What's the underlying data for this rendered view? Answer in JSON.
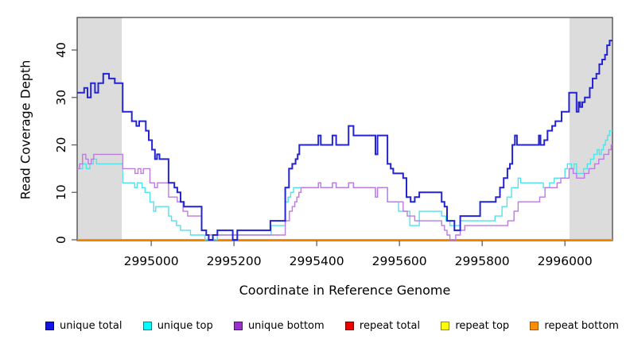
{
  "chart_data": {
    "type": "line",
    "subtype": "step-coverage-plot",
    "title": "",
    "xlabel": "Coordinate in Reference Genome",
    "ylabel": "Read Coverage Depth",
    "xlim": [
      2994821,
      2996115
    ],
    "ylim": [
      0,
      46.8
    ],
    "grid": "off",
    "x_ticks": {
      "values": [
        2995000,
        2995200,
        2995400,
        2995600,
        2995800,
        2996000
      ],
      "labels": [
        "2995000",
        "2995200",
        "2995400",
        "2995600",
        "2995800",
        "2996000"
      ]
    },
    "y_ticks": {
      "values": [
        0,
        10,
        20,
        30,
        40
      ],
      "labels": [
        "0",
        "10",
        "20",
        "30",
        "40"
      ]
    },
    "shaded_regions": [
      {
        "x0": 2994821,
        "x1": 2994929,
        "color": "#DCDCDC"
      },
      {
        "x0": 2996011,
        "x1": 2996115,
        "color": "#DCDCDC"
      }
    ],
    "legend_position": "bottom",
    "series": [
      {
        "name": "repeat total",
        "line_color": "#CC0000",
        "legend_color": "#EE0000",
        "border_color": "#7A0000",
        "line_width": 1.4,
        "points": [
          [
            2994821,
            0
          ]
        ]
      },
      {
        "name": "repeat top",
        "line_color": "#FFFF00",
        "legend_color": "#FFFF00",
        "border_color": "#8F8F00",
        "line_width": 1.4,
        "points": [
          [
            2994821,
            0
          ]
        ]
      },
      {
        "name": "repeat bottom",
        "line_color": "#FF8C00",
        "legend_color": "#FF8C00",
        "border_color": "#9C5400",
        "line_width": 2,
        "points": [
          [
            2994821,
            0
          ]
        ]
      },
      {
        "name": "unique top",
        "line_color": "#52E2EA",
        "legend_color": "#00FFFF",
        "border_color": "#007F86",
        "line_width": 1.4,
        "points": [
          [
            2994821,
            15
          ],
          [
            2994834,
            16
          ],
          [
            2994843,
            15
          ],
          [
            2994852,
            16
          ],
          [
            2994860,
            17
          ],
          [
            2994868,
            16
          ],
          [
            2994931,
            12
          ],
          [
            2994960,
            11
          ],
          [
            2994966,
            12
          ],
          [
            2994978,
            11
          ],
          [
            2994985,
            10
          ],
          [
            2994997,
            8
          ],
          [
            2995006,
            6
          ],
          [
            2995011,
            7
          ],
          [
            2995042,
            5
          ],
          [
            2995049,
            4
          ],
          [
            2995061,
            3
          ],
          [
            2995071,
            2
          ],
          [
            2995095,
            1
          ],
          [
            2995130,
            0
          ],
          [
            2995160,
            1
          ],
          [
            2995290,
            3
          ],
          [
            2995324,
            8
          ],
          [
            2995331,
            9
          ],
          [
            2995337,
            10
          ],
          [
            2995344,
            11
          ],
          [
            2995404,
            12
          ],
          [
            2995410,
            11
          ],
          [
            2995438,
            12
          ],
          [
            2995447,
            11
          ],
          [
            2995477,
            12
          ],
          [
            2995489,
            11
          ],
          [
            2995542,
            9
          ],
          [
            2995547,
            11
          ],
          [
            2995571,
            8
          ],
          [
            2995598,
            6
          ],
          [
            2995625,
            3
          ],
          [
            2995648,
            6
          ],
          [
            2995702,
            5
          ],
          [
            2995712,
            4
          ],
          [
            2995722,
            3
          ],
          [
            2995747,
            4
          ],
          [
            2995831,
            5
          ],
          [
            2995848,
            7
          ],
          [
            2995860,
            9
          ],
          [
            2995871,
            11
          ],
          [
            2995887,
            13
          ],
          [
            2995893,
            12
          ],
          [
            2995948,
            11
          ],
          [
            2995963,
            12
          ],
          [
            2995974,
            13
          ],
          [
            2996000,
            15
          ],
          [
            2996006,
            16
          ],
          [
            2996016,
            15
          ],
          [
            2996022,
            16
          ],
          [
            2996028,
            14
          ],
          [
            2996045,
            15
          ],
          [
            2996054,
            16
          ],
          [
            2996062,
            17
          ],
          [
            2996070,
            18
          ],
          [
            2996078,
            19
          ],
          [
            2996083,
            18
          ],
          [
            2996088,
            19
          ],
          [
            2996093,
            20
          ],
          [
            2996098,
            21
          ],
          [
            2996103,
            22
          ],
          [
            2996108,
            23
          ]
        ]
      },
      {
        "name": "unique bottom",
        "line_color": "#BC7BDE",
        "legend_color": "#9932CC",
        "border_color": "#4B1566",
        "line_width": 1.4,
        "points": [
          [
            2994821,
            15
          ],
          [
            2994827,
            16
          ],
          [
            2994834,
            18
          ],
          [
            2994842,
            17
          ],
          [
            2994848,
            16
          ],
          [
            2994855,
            17
          ],
          [
            2994861,
            18
          ],
          [
            2994931,
            15
          ],
          [
            2994961,
            14
          ],
          [
            2994968,
            15
          ],
          [
            2994975,
            14
          ],
          [
            2994981,
            15
          ],
          [
            2994997,
            12
          ],
          [
            2995008,
            11
          ],
          [
            2995015,
            12
          ],
          [
            2995042,
            9
          ],
          [
            2995063,
            8
          ],
          [
            2995077,
            6
          ],
          [
            2995088,
            5
          ],
          [
            2995122,
            2
          ],
          [
            2995133,
            1
          ],
          [
            2995324,
            4
          ],
          [
            2995334,
            6
          ],
          [
            2995341,
            7
          ],
          [
            2995347,
            8
          ],
          [
            2995352,
            9
          ],
          [
            2995357,
            10
          ],
          [
            2995362,
            11
          ],
          [
            2995404,
            12
          ],
          [
            2995410,
            11
          ],
          [
            2995438,
            12
          ],
          [
            2995447,
            11
          ],
          [
            2995477,
            12
          ],
          [
            2995489,
            11
          ],
          [
            2995542,
            9
          ],
          [
            2995547,
            11
          ],
          [
            2995571,
            8
          ],
          [
            2995609,
            6
          ],
          [
            2995619,
            5
          ],
          [
            2995637,
            4
          ],
          [
            2995702,
            3
          ],
          [
            2995709,
            2
          ],
          [
            2995715,
            1
          ],
          [
            2995722,
            0
          ],
          [
            2995736,
            1
          ],
          [
            2995747,
            2
          ],
          [
            2995758,
            3
          ],
          [
            2995862,
            4
          ],
          [
            2995877,
            6
          ],
          [
            2995887,
            8
          ],
          [
            2995939,
            9
          ],
          [
            2995952,
            11
          ],
          [
            2995981,
            12
          ],
          [
            2995990,
            13
          ],
          [
            2996010,
            15
          ],
          [
            2996020,
            14
          ],
          [
            2996028,
            13
          ],
          [
            2996047,
            14
          ],
          [
            2996058,
            15
          ],
          [
            2996072,
            16
          ],
          [
            2996082,
            17
          ],
          [
            2996094,
            18
          ],
          [
            2996106,
            19
          ],
          [
            2996112,
            20
          ]
        ]
      },
      {
        "name": "unique total",
        "line_color": "#2424D0",
        "legend_color": "#1414E0",
        "border_color": "#000080",
        "line_width": 2,
        "points": [
          [
            2994821,
            31
          ],
          [
            2994838,
            32
          ],
          [
            2994846,
            30
          ],
          [
            2994854,
            33
          ],
          [
            2994864,
            31
          ],
          [
            2994872,
            33
          ],
          [
            2994884,
            35
          ],
          [
            2994898,
            34
          ],
          [
            2994912,
            33
          ],
          [
            2994931,
            27
          ],
          [
            2994953,
            25
          ],
          [
            2994964,
            24
          ],
          [
            2994971,
            25
          ],
          [
            2994987,
            23
          ],
          [
            2994994,
            21
          ],
          [
            2995002,
            19
          ],
          [
            2995009,
            17
          ],
          [
            2995014,
            18
          ],
          [
            2995020,
            17
          ],
          [
            2995042,
            12
          ],
          [
            2995056,
            11
          ],
          [
            2995063,
            10
          ],
          [
            2995071,
            8
          ],
          [
            2995079,
            7
          ],
          [
            2995122,
            2
          ],
          [
            2995133,
            1
          ],
          [
            2995139,
            0
          ],
          [
            2995149,
            1
          ],
          [
            2995160,
            2
          ],
          [
            2995197,
            0
          ],
          [
            2995208,
            2
          ],
          [
            2995288,
            4
          ],
          [
            2995324,
            11
          ],
          [
            2995333,
            15
          ],
          [
            2995341,
            16
          ],
          [
            2995349,
            17
          ],
          [
            2995354,
            18
          ],
          [
            2995358,
            20
          ],
          [
            2995404,
            22
          ],
          [
            2995410,
            20
          ],
          [
            2995438,
            22
          ],
          [
            2995447,
            20
          ],
          [
            2995477,
            24
          ],
          [
            2995489,
            22
          ],
          [
            2995542,
            18
          ],
          [
            2995547,
            22
          ],
          [
            2995571,
            16
          ],
          [
            2995579,
            15
          ],
          [
            2995585,
            14
          ],
          [
            2995609,
            13
          ],
          [
            2995617,
            9
          ],
          [
            2995627,
            8
          ],
          [
            2995637,
            9
          ],
          [
            2995648,
            10
          ],
          [
            2995702,
            8
          ],
          [
            2995709,
            7
          ],
          [
            2995715,
            4
          ],
          [
            2995733,
            2
          ],
          [
            2995747,
            5
          ],
          [
            2995795,
            8
          ],
          [
            2995833,
            9
          ],
          [
            2995843,
            11
          ],
          [
            2995852,
            13
          ],
          [
            2995861,
            15
          ],
          [
            2995867,
            16
          ],
          [
            2995873,
            20
          ],
          [
            2995879,
            22
          ],
          [
            2995884,
            20
          ],
          [
            2995937,
            22
          ],
          [
            2995941,
            20
          ],
          [
            2995950,
            21
          ],
          [
            2995958,
            23
          ],
          [
            2995969,
            24
          ],
          [
            2995977,
            25
          ],
          [
            2995992,
            27
          ],
          [
            2996010,
            31
          ],
          [
            2996028,
            27
          ],
          [
            2996033,
            29
          ],
          [
            2996037,
            28
          ],
          [
            2996042,
            29
          ],
          [
            2996048,
            30
          ],
          [
            2996060,
            32
          ],
          [
            2996067,
            34
          ],
          [
            2996076,
            35
          ],
          [
            2996083,
            37
          ],
          [
            2996090,
            38
          ],
          [
            2996097,
            39
          ],
          [
            2996102,
            41
          ],
          [
            2996108,
            42
          ]
        ]
      }
    ],
    "legend_order": [
      "unique total",
      "unique top",
      "unique bottom",
      "repeat total",
      "repeat top",
      "repeat bottom"
    ],
    "axis_color": "#3A3A3A"
  },
  "layout_text": {
    "x_axis_title": "Coordinate in Reference Genome",
    "y_axis_title": "Read Coverage Depth"
  }
}
